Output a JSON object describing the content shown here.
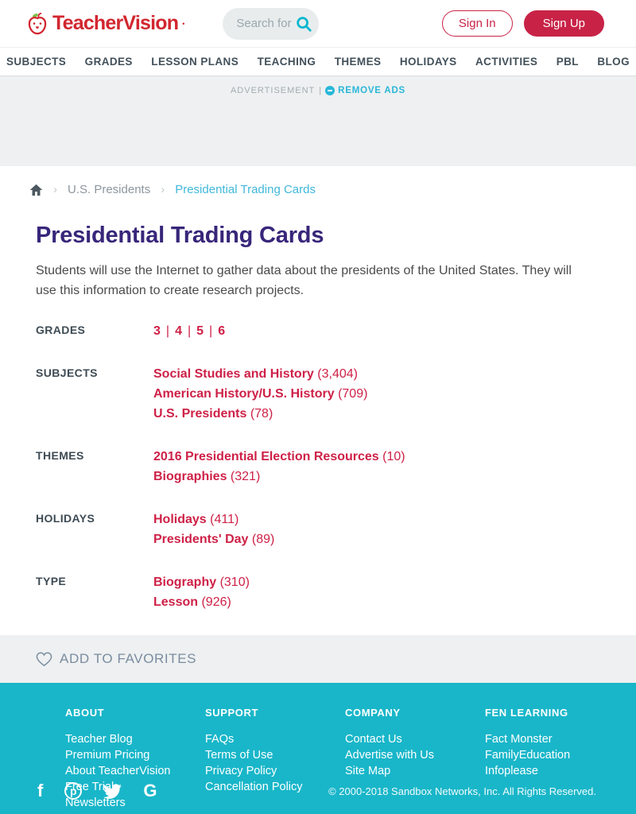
{
  "header": {
    "logo_text": "TeacherVision",
    "search_placeholder": "Search for",
    "sign_in_label": "Sign In",
    "sign_up_label": "Sign Up"
  },
  "nav": {
    "items": [
      "SUBJECTS",
      "GRADES",
      "LESSON PLANS",
      "TEACHING",
      "THEMES",
      "HOLIDAYS",
      "ACTIVITIES",
      "PBL",
      "BLOG"
    ]
  },
  "ad_bar": {
    "label": "ADVERTISEMENT",
    "separator": "|",
    "remove_ads_label": "REMOVE ADS"
  },
  "breadcrumb": {
    "parent": "U.S. Presidents",
    "current": "Presidential Trading Cards",
    "separator": "›"
  },
  "main": {
    "title": "Presidential Trading Cards",
    "description": "Students will use the Internet to gather data about the presidents of the United States. They will use this information to create research projects.",
    "meta": [
      {
        "label": "GRADES",
        "style": "inline",
        "links": [
          {
            "text": "3"
          },
          {
            "text": "4"
          },
          {
            "text": "5"
          },
          {
            "text": "6"
          }
        ]
      },
      {
        "label": "SUBJECTS",
        "style": "stacked",
        "links": [
          {
            "text": "Social Studies and History",
            "count": "(3,404)"
          },
          {
            "text": "American History/U.S. History",
            "count": "(709)"
          },
          {
            "text": "U.S. Presidents",
            "count": "(78)"
          }
        ]
      },
      {
        "label": "THEMES",
        "style": "stacked",
        "links": [
          {
            "text": "2016 Presidential Election Resources",
            "count": "(10)"
          },
          {
            "text": "Biographies",
            "count": "(321)"
          }
        ]
      },
      {
        "label": "HOLIDAYS",
        "style": "stacked",
        "links": [
          {
            "text": "Holidays",
            "count": "(411)"
          },
          {
            "text": "Presidents' Day",
            "count": "(89)"
          }
        ]
      },
      {
        "label": "TYPE",
        "style": "stacked",
        "links": [
          {
            "text": "Biography",
            "count": "(310)"
          },
          {
            "text": "Lesson",
            "count": "(926)"
          }
        ]
      }
    ]
  },
  "favorites": {
    "label": "ADD TO FAVORITES"
  },
  "footer": {
    "columns": [
      {
        "heading": "ABOUT",
        "links": [
          "Teacher Blog",
          "Premium Pricing",
          "About TeacherVision",
          "Free Trial",
          "Newsletters"
        ]
      },
      {
        "heading": "SUPPORT",
        "links": [
          "FAQs",
          "Terms of Use",
          "Privacy Policy",
          "Cancellation Policy"
        ]
      },
      {
        "heading": "COMPANY",
        "links": [
          "Contact Us",
          "Advertise with Us",
          "Site Map"
        ]
      },
      {
        "heading": "FEN LEARNING",
        "links": [
          "Fact Monster",
          "FamilyEducation",
          "Infoplease"
        ]
      }
    ],
    "social": [
      "facebook",
      "pinterest",
      "twitter",
      "google"
    ],
    "copyright": "© 2000-2018 Sandbox Networks, Inc. All Rights Reserved."
  },
  "colors": {
    "brand-red": "#d2262f",
    "button-red": "#c82347",
    "link-red": "#ce2147",
    "title-purple": "#38267a",
    "footer-teal": "#19b6c9",
    "removeads-teal": "#29b7d8",
    "breadcrumb-teal": "#41b8da"
  }
}
